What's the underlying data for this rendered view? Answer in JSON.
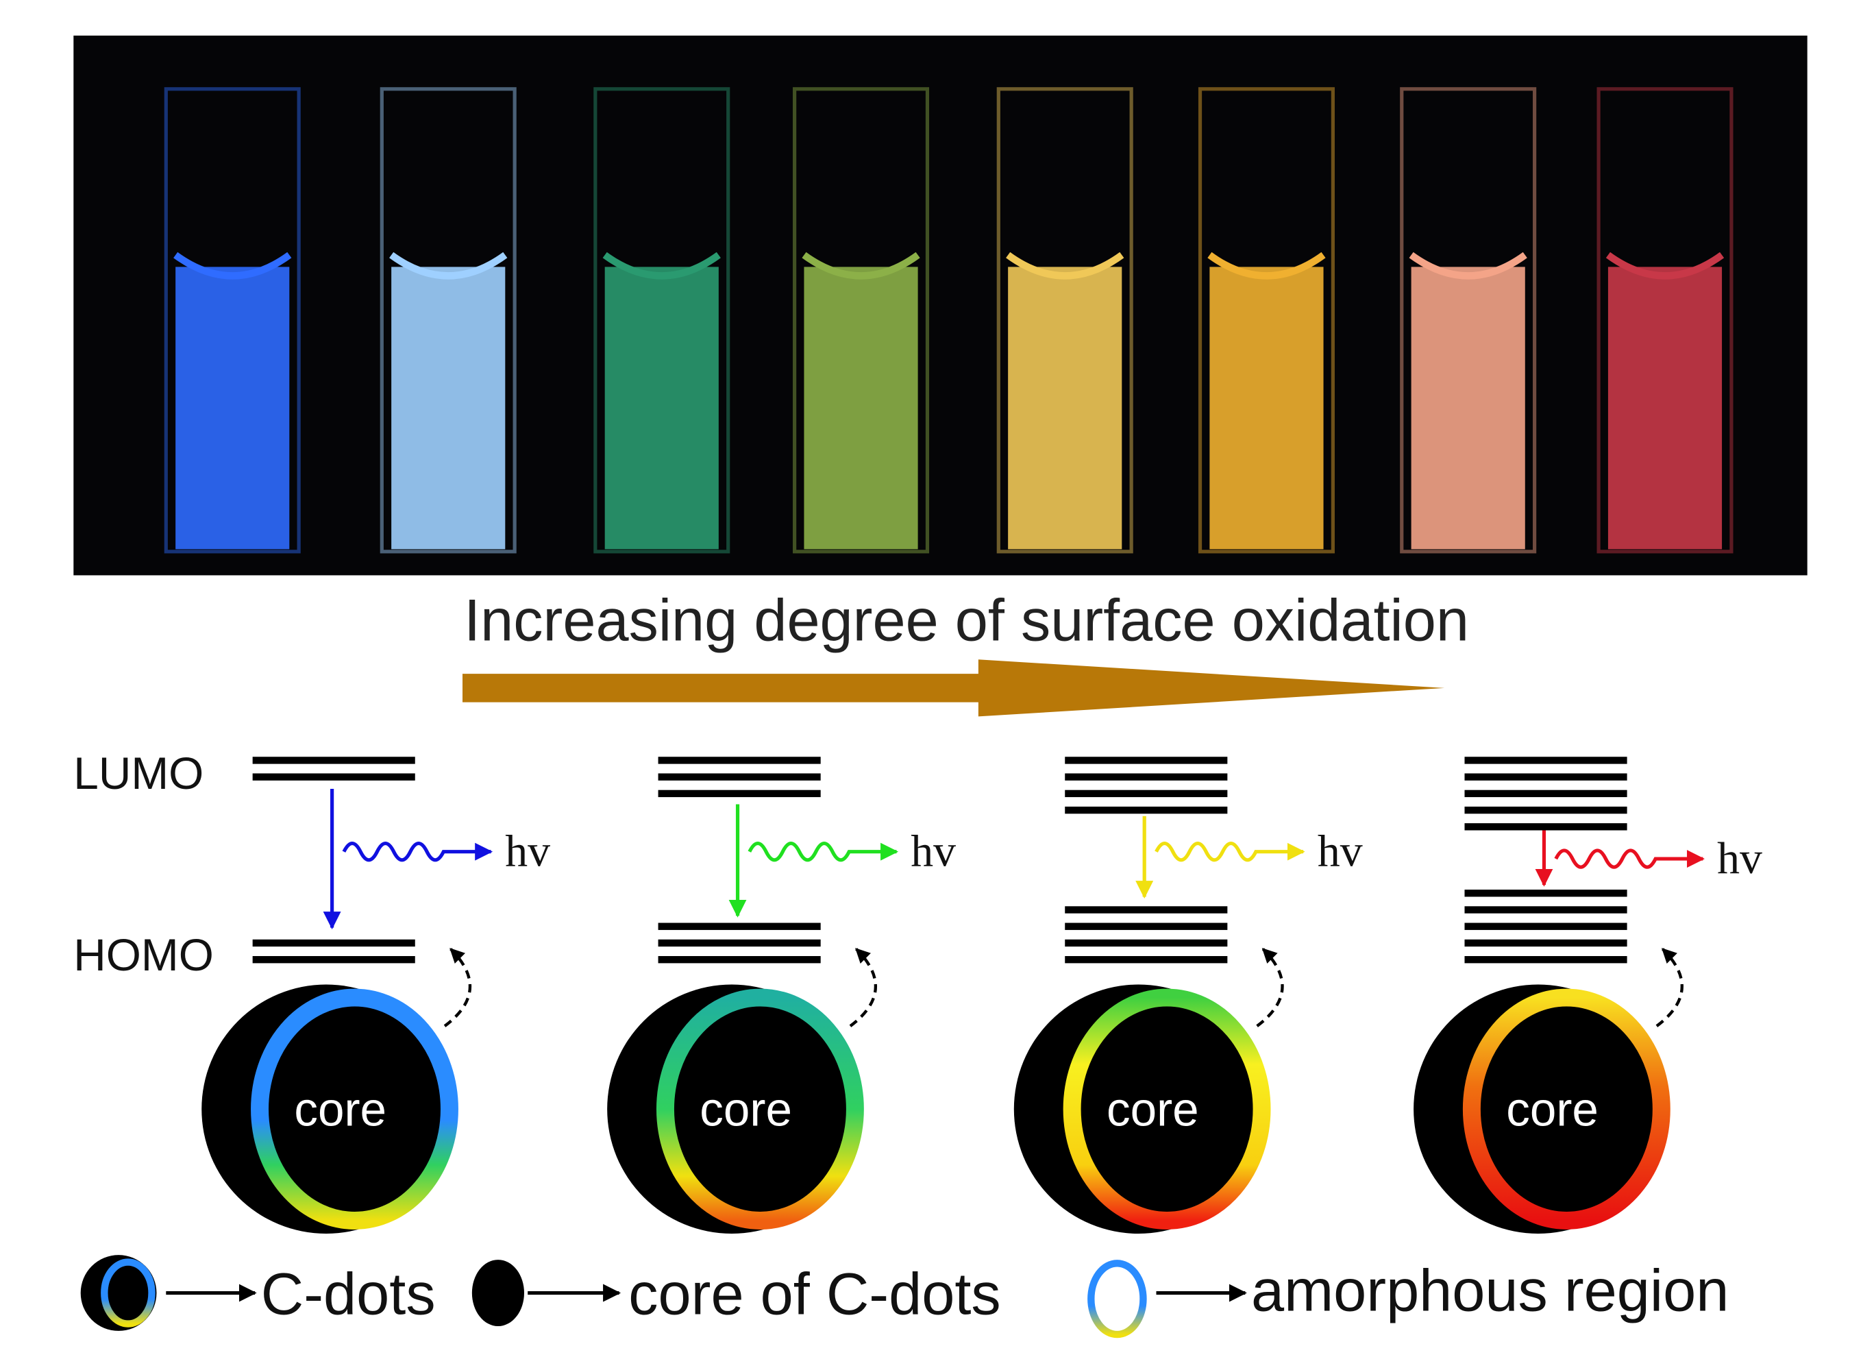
{
  "caption": "Increasing degree of surface oxidation",
  "levels": {
    "lumo": "LUMO",
    "homo": "HOMO"
  },
  "panels": [
    {
      "emission": "hv",
      "core": "core"
    },
    {
      "emission": "hv",
      "core": "core"
    },
    {
      "emission": "hv",
      "core": "core"
    },
    {
      "emission": "hv",
      "core": "core"
    }
  ],
  "legend": [
    {
      "label": "C-dots"
    },
    {
      "label": "core of C-dots"
    },
    {
      "label": "amorphous region"
    }
  ]
}
